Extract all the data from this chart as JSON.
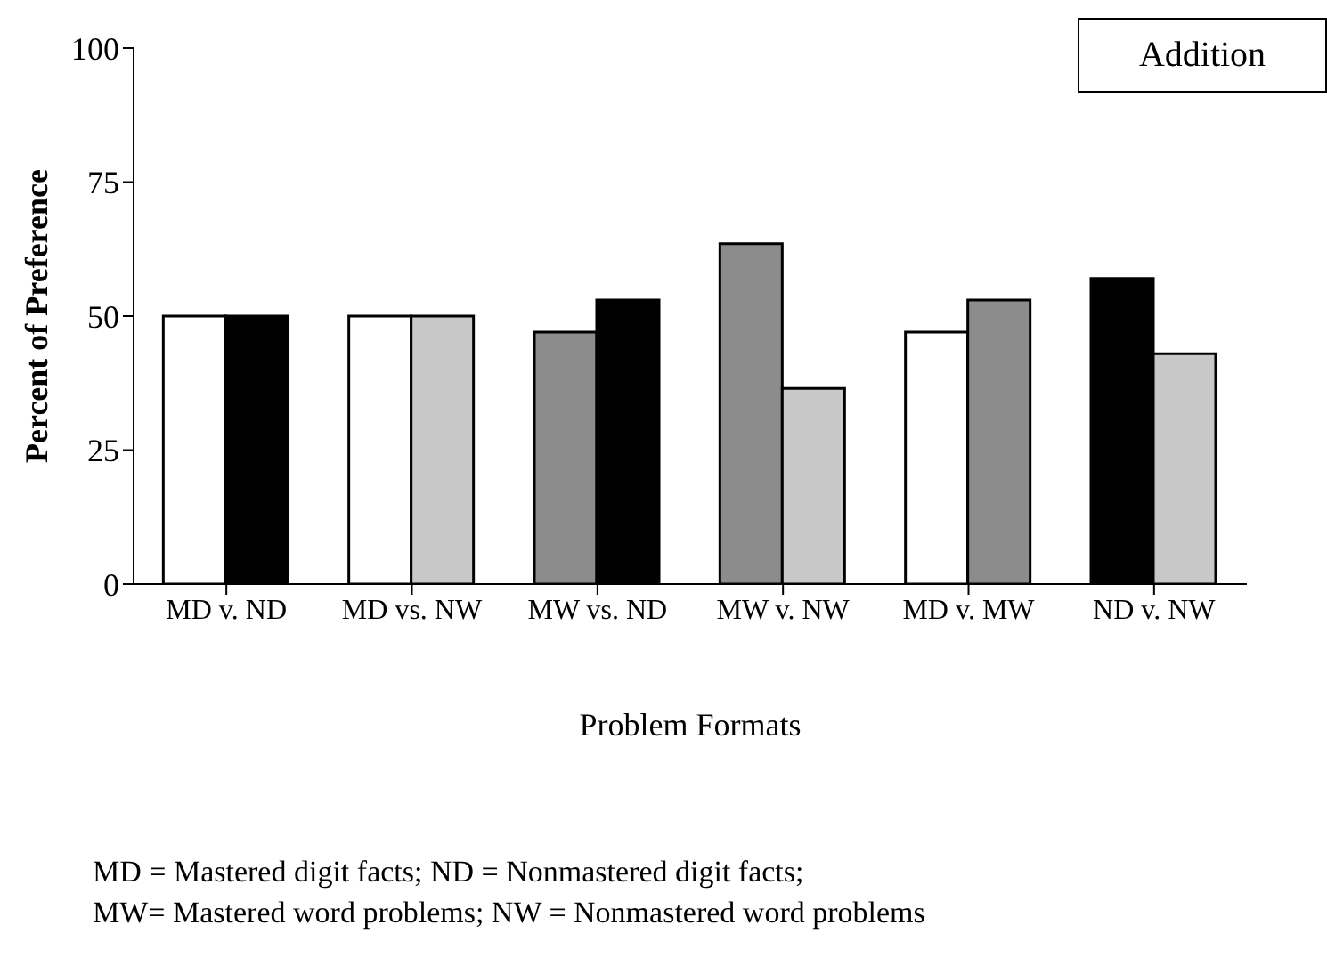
{
  "chart_data": {
    "type": "bar",
    "xlabel": "Problem Formats",
    "ylabel": "Percent of Preference",
    "annotations": [
      "Addition",
      "MD = Mastered digit facts; ND = Nonmastered digit facts;",
      "MW= Mastered word problems; NW = Nonmastered word problems"
    ],
    "categories": [
      "MD v. ND",
      "MD vs. NW",
      "MW vs. ND",
      "MW v. NW",
      "MD v. MW",
      "ND v. NW"
    ],
    "series": [
      {
        "colors": [
          "#ffffff",
          "#ffffff",
          "#8c8c8c",
          "#8c8c8c",
          "#ffffff",
          "#000000"
        ],
        "values": [
          50,
          50,
          47,
          63.5,
          47,
          57
        ]
      },
      {
        "colors": [
          "#000000",
          "#c8c8c8",
          "#000000",
          "#c8c8c8",
          "#8c8c8c",
          "#c8c8c8"
        ],
        "values": [
          50,
          50,
          53,
          36.5,
          53,
          43
        ]
      }
    ],
    "ylim": [
      0,
      100
    ],
    "yticks": [
      0,
      25,
      50,
      75,
      100
    ],
    "grid": false,
    "legend": false
  }
}
